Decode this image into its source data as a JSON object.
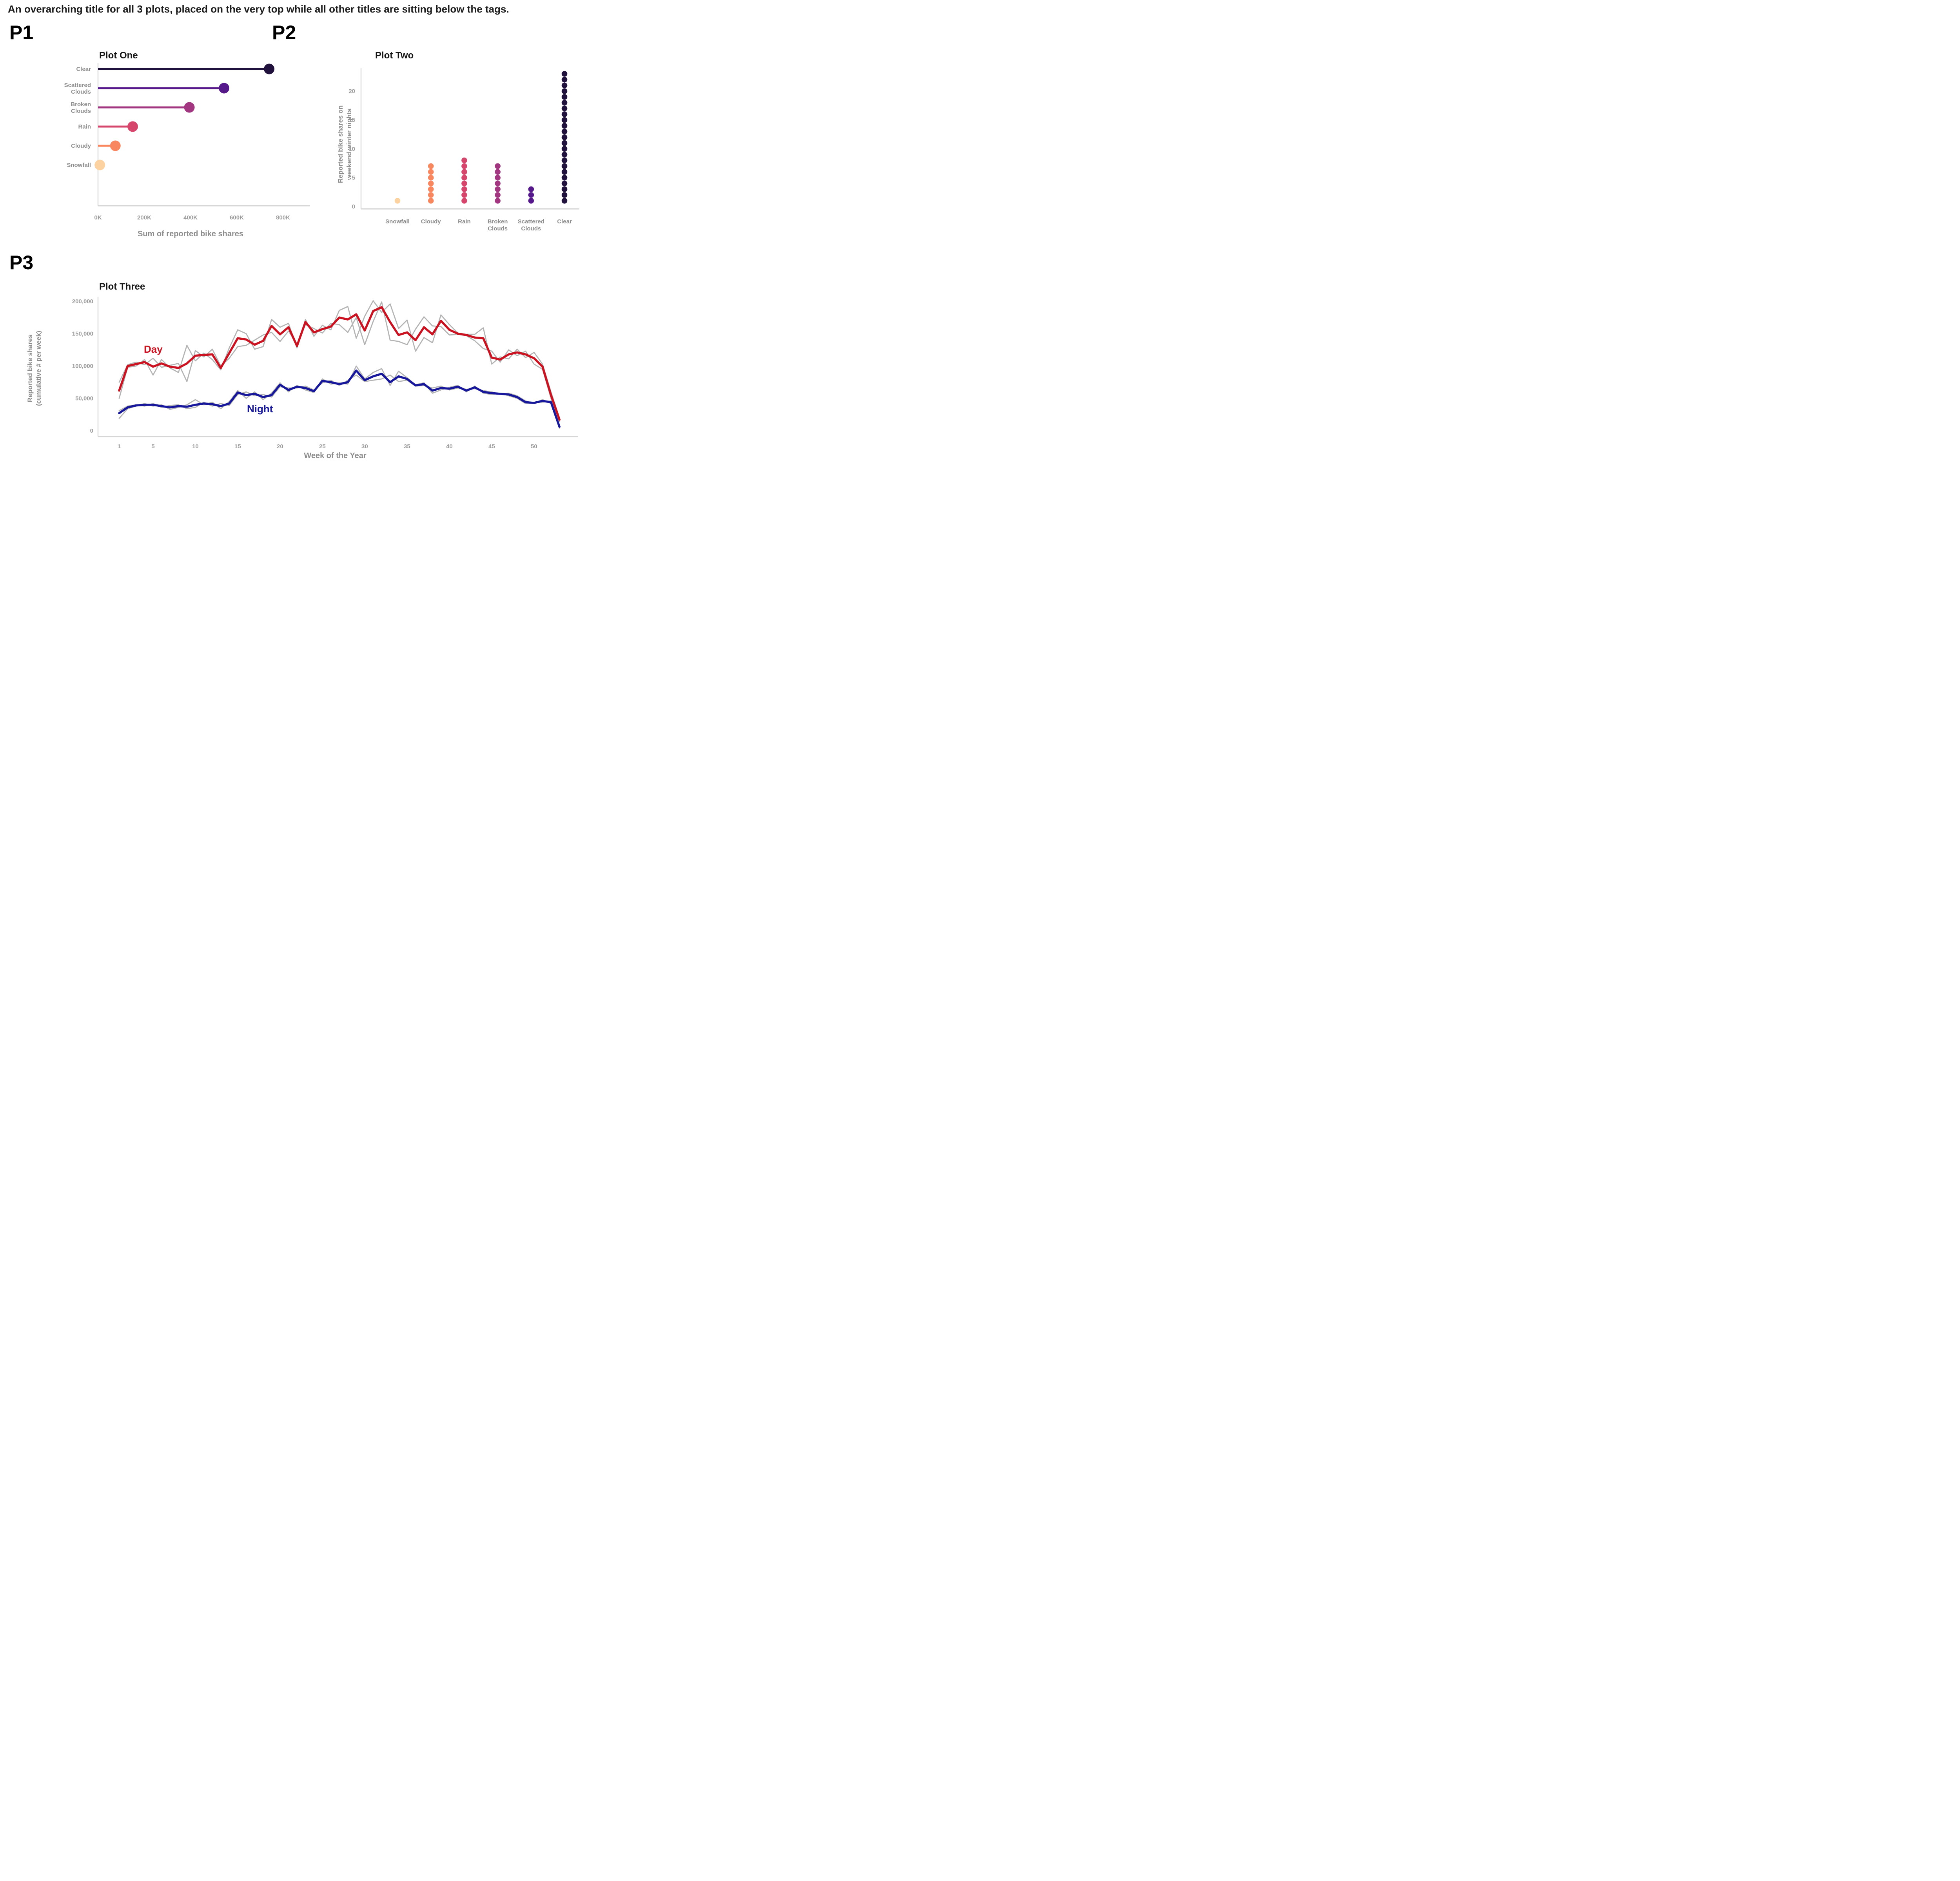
{
  "page": {
    "title": "An overarching title for all 3 plots, placed on the very top while all other titles are sitting below the tags."
  },
  "p1": {
    "tag": "P1",
    "title": "Plot One",
    "xlabel": "Sum of reported bike shares"
  },
  "p2": {
    "tag": "P2",
    "title": "Plot Two",
    "ylabel_line1": "Reported bike shares on",
    "ylabel_line2": "weekend winter nights"
  },
  "p3": {
    "tag": "P3",
    "title": "Plot Three",
    "ylabel_line1": "Reported bike shares",
    "ylabel_line2": "(cumulative # per week)",
    "xlabel": "Week of the Year",
    "day_label": "Day",
    "night_label": "Night"
  },
  "chart_data": [
    {
      "id": "p1",
      "type": "bar",
      "subtype": "horizontal-lollipop",
      "title": "Plot One",
      "xlabel": "Sum of reported bike shares",
      "categories": [
        [
          "Clear"
        ],
        [
          "Scattered",
          "Clouds"
        ],
        [
          "Broken",
          "Clouds"
        ],
        [
          "Rain"
        ],
        [
          "Cloudy"
        ],
        [
          "Snowfall"
        ]
      ],
      "values": [
        740000,
        545000,
        395000,
        150000,
        75000,
        8000
      ],
      "colors": [
        "#21113D",
        "#55198B",
        "#A33681",
        "#D6466C",
        "#F8865E",
        "#FBD2A0"
      ],
      "x_ticks": [
        {
          "value": 0,
          "label": "0K"
        },
        {
          "value": 200000,
          "label": "200K"
        },
        {
          "value": 400000,
          "label": "400K"
        },
        {
          "value": 600000,
          "label": "600K"
        },
        {
          "value": 800000,
          "label": "800K"
        }
      ],
      "xlim": [
        0,
        800000
      ],
      "grid": false
    },
    {
      "id": "p2",
      "type": "scatter",
      "subtype": "stacked-dot-plot",
      "title": "Plot Two",
      "ylabel": "Reported bike shares on weekend winter nights",
      "categories": [
        [
          "Snowfall"
        ],
        [
          "Cloudy"
        ],
        [
          "Rain"
        ],
        [
          "Broken",
          "Clouds"
        ],
        [
          "Scattered",
          "Clouds"
        ],
        [
          "Clear"
        ]
      ],
      "counts": [
        1,
        7,
        8,
        7,
        3,
        23
      ],
      "colors": [
        "#FBD2A0",
        "#F8865E",
        "#D6466C",
        "#A33681",
        "#55198B",
        "#21113D"
      ],
      "y_ticks": [
        0,
        5,
        10,
        15,
        20
      ],
      "ylim": [
        0,
        24
      ],
      "grid": false
    },
    {
      "id": "p3",
      "type": "line",
      "title": "Plot Three",
      "xlabel": "Week of the Year",
      "ylabel": "Reported bike shares (cumulative # per week)",
      "x_range": [
        1,
        53
      ],
      "x_ticks": [
        1,
        5,
        10,
        15,
        20,
        25,
        30,
        35,
        40,
        45,
        50
      ],
      "y_ticks": [
        {
          "value": 0,
          "label": "0"
        },
        {
          "value": 50000,
          "label": "50,000"
        },
        {
          "value": 100000,
          "label": "100,000"
        },
        {
          "value": 150000,
          "label": "150,000"
        },
        {
          "value": 200000,
          "label": "200,000"
        }
      ],
      "ylim": [
        0,
        210000
      ],
      "legend_position": "inline-annotations",
      "series": [
        {
          "key": "day_raw_a",
          "name": "Day raw (gray)",
          "color": "#B3B3B3",
          "width": 2.8,
          "values": [
            50000,
            98000,
            100000,
            110000,
            86000,
            110000,
            97000,
            90000,
            132000,
            108000,
            120000,
            110000,
            94000,
            128000,
            156000,
            150000,
            126000,
            130000,
            172000,
            160000,
            166000,
            128000,
            172000,
            146000,
            163000,
            156000,
            186000,
            192000,
            143000,
            177000,
            201000,
            183000,
            196000,
            158000,
            171000,
            123000,
            144000,
            136000,
            179000,
            164000,
            151000,
            149000,
            149000,
            159000,
            103000,
            114000,
            111000,
            126000,
            113000,
            121000,
            103000,
            60000,
            20000
          ]
        },
        {
          "key": "day_raw_b",
          "name": "Day raw (gray)",
          "color": "#B3B3B3",
          "width": 2.8,
          "values": [
            75000,
            102000,
            106000,
            102000,
            112000,
            98000,
            101000,
            104000,
            76000,
            124000,
            114000,
            126000,
            100000,
            112000,
            130000,
            132000,
            140000,
            148000,
            152000,
            138000,
            154000,
            134000,
            164000,
            158000,
            151000,
            166000,
            164000,
            152000,
            175000,
            133000,
            169000,
            199000,
            140000,
            138000,
            133000,
            157000,
            176000,
            162000,
            161000,
            148000,
            149000,
            147000,
            139000,
            127000,
            123000,
            106000,
            125000,
            116000,
            123000,
            103000,
            95000,
            50000,
            14000
          ]
        },
        {
          "key": "night_raw_a",
          "name": "Night raw (gray)",
          "color": "#B3B3B3",
          "width": 2.8,
          "values": [
            19000,
            34000,
            38000,
            42000,
            38000,
            40000,
            33000,
            36000,
            40000,
            48000,
            40000,
            44000,
            34000,
            45000,
            62000,
            50000,
            60000,
            48000,
            58000,
            74000,
            60000,
            70000,
            63000,
            59000,
            80000,
            72000,
            74000,
            72000,
            100000,
            80000,
            90000,
            96000,
            70000,
            92000,
            82000,
            71000,
            74000,
            58000,
            63000,
            67000,
            70000,
            60000,
            69000,
            58000,
            56000,
            58000,
            54000,
            50000,
            42000,
            44000,
            44000,
            46000,
            8000
          ]
        },
        {
          "key": "night_raw_b",
          "name": "Night raw (gray)",
          "color": "#B3B3B3",
          "width": 2.8,
          "values": [
            31000,
            38000,
            40000,
            38000,
            42000,
            36000,
            39000,
            40000,
            34000,
            36000,
            44000,
            38000,
            42000,
            39000,
            56000,
            60000,
            54000,
            56000,
            52000,
            68000,
            66000,
            66000,
            69000,
            63000,
            74000,
            78000,
            70000,
            78000,
            86000,
            76000,
            78000,
            80000,
            86000,
            76000,
            78000,
            69000,
            70000,
            66000,
            69000,
            63000,
            66000,
            64000,
            65000,
            62000,
            60000,
            56000,
            58000,
            54000,
            46000,
            42000,
            48000,
            42000,
            4000
          ]
        },
        {
          "key": "day",
          "name": "Day",
          "color": "#CB1220",
          "width": 5.5,
          "values": [
            62000,
            100000,
            103000,
            106000,
            99000,
            104000,
            99000,
            97000,
            104000,
            116000,
            117000,
            118000,
            97000,
            120000,
            143000,
            141000,
            133000,
            139000,
            162000,
            149000,
            160000,
            131000,
            168000,
            152000,
            157000,
            161000,
            175000,
            172000,
            180000,
            155000,
            185000,
            191000,
            168000,
            148000,
            152000,
            140000,
            160000,
            149000,
            170000,
            156000,
            150000,
            148000,
            144000,
            143000,
            113000,
            110000,
            118000,
            121000,
            118000,
            112000,
            99000,
            55000,
            17000
          ]
        },
        {
          "key": "night",
          "name": "Night",
          "color": "#17179C",
          "width": 5.5,
          "values": [
            27000,
            36000,
            39000,
            40000,
            40000,
            38000,
            36000,
            38000,
            37000,
            40000,
            42000,
            41000,
            38000,
            42000,
            59000,
            55000,
            57000,
            52000,
            55000,
            71000,
            63000,
            68000,
            66000,
            61000,
            77000,
            75000,
            72000,
            75000,
            93000,
            78000,
            84000,
            88000,
            75000,
            84000,
            80000,
            70000,
            72000,
            62000,
            66000,
            65000,
            68000,
            62000,
            67000,
            60000,
            58000,
            57000,
            56000,
            52000,
            44000,
            43000,
            46000,
            44000,
            6000
          ]
        }
      ]
    }
  ]
}
